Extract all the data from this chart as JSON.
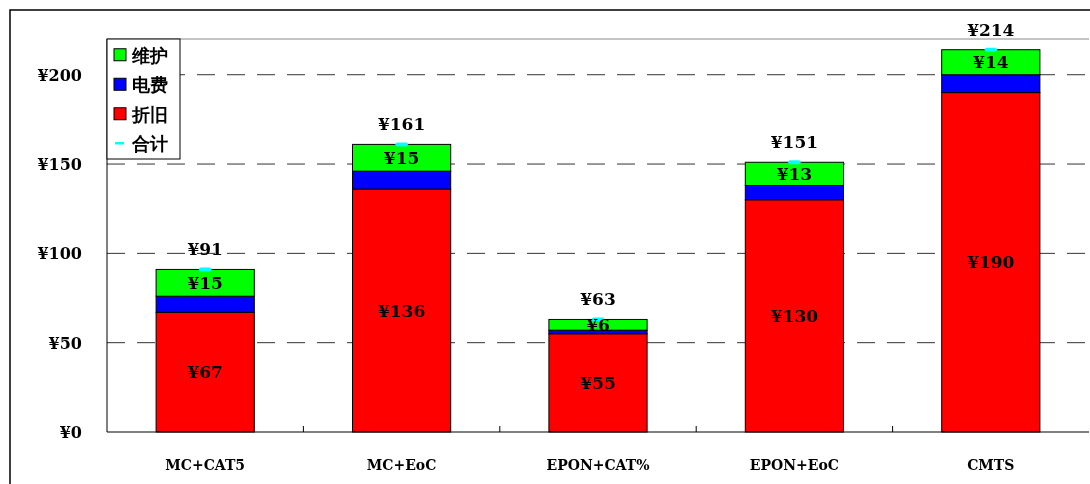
{
  "chart_data": {
    "type": "bar",
    "stacked": true,
    "categories": [
      "MC+CAT5",
      "MC+EoC",
      "EPON+CAT%",
      "EPON+EoC",
      "CMTS"
    ],
    "series": [
      {
        "name": "折旧",
        "color": "#ff0000",
        "values": [
          67,
          136,
          55,
          130,
          190
        ],
        "value_labels": [
          "¥67",
          "¥136",
          "¥55",
          "¥130",
          "¥190"
        ]
      },
      {
        "name": "电费",
        "color": "#0000ff",
        "values": [
          9,
          10,
          2,
          8,
          10
        ]
      },
      {
        "name": "维护",
        "color": "#00ff00",
        "values": [
          15,
          15,
          6,
          13,
          14
        ],
        "value_labels": [
          "¥15",
          "¥15",
          "¥6",
          "¥13",
          "¥14"
        ]
      },
      {
        "name": "合计",
        "type": "scatter",
        "color": "#00ffff",
        "values": [
          91,
          161,
          63,
          151,
          214
        ],
        "value_labels": [
          "¥91",
          "¥161",
          "¥63",
          "¥151",
          "¥214"
        ]
      }
    ],
    "ylim": [
      0,
      220
    ],
    "yticks": [
      {
        "value": 0,
        "label": "¥0"
      },
      {
        "value": 50,
        "label": "¥50"
      },
      {
        "value": 100,
        "label": "¥100"
      },
      {
        "value": 150,
        "label": "¥150"
      },
      {
        "value": 200,
        "label": "¥200"
      }
    ],
    "grid": "y",
    "legend": "top left"
  }
}
